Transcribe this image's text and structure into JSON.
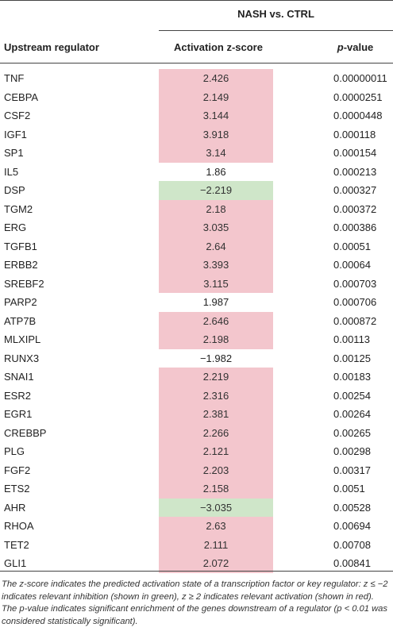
{
  "header": {
    "group_label": "NASH vs. CTRL",
    "col_regulator": "Upstream regulator",
    "col_zscore": "Activation z-score",
    "col_pvalue_prefix": "p",
    "col_pvalue_suffix": "-value"
  },
  "colors": {
    "activation": "#f3c6cd",
    "inhibition": "#cfe6c9"
  },
  "rows": [
    {
      "name": "TNF",
      "z": "2.426",
      "p": "0.00000011",
      "state": "act"
    },
    {
      "name": "CEBPA",
      "z": "2.149",
      "p": "0.0000251",
      "state": "act"
    },
    {
      "name": "CSF2",
      "z": "3.144",
      "p": "0.0000448",
      "state": "act"
    },
    {
      "name": "IGF1",
      "z": "3.918",
      "p": "0.000118",
      "state": "act"
    },
    {
      "name": "SP1",
      "z": "3.14",
      "p": "0.000154",
      "state": "act"
    },
    {
      "name": "IL5",
      "z": "1.86",
      "p": "0.000213",
      "state": "neu"
    },
    {
      "name": "DSP",
      "z": "−2.219",
      "p": "0.000327",
      "state": "inh"
    },
    {
      "name": "TGM2",
      "z": "2.18",
      "p": "0.000372",
      "state": "act"
    },
    {
      "name": "ERG",
      "z": "3.035",
      "p": "0.000386",
      "state": "act"
    },
    {
      "name": "TGFB1",
      "z": "2.64",
      "p": "0.00051",
      "state": "act"
    },
    {
      "name": "ERBB2",
      "z": "3.393",
      "p": "0.00064",
      "state": "act"
    },
    {
      "name": "SREBF2",
      "z": "3.115",
      "p": "0.000703",
      "state": "act"
    },
    {
      "name": "PARP2",
      "z": "1.987",
      "p": "0.000706",
      "state": "neu"
    },
    {
      "name": "ATP7B",
      "z": "2.646",
      "p": "0.000872",
      "state": "act"
    },
    {
      "name": "MLXIPL",
      "z": "2.198",
      "p": "0.00113",
      "state": "act"
    },
    {
      "name": "RUNX3",
      "z": "−1.982",
      "p": "0.00125",
      "state": "neu"
    },
    {
      "name": "SNAI1",
      "z": "2.219",
      "p": "0.00183",
      "state": "act"
    },
    {
      "name": "ESR2",
      "z": "2.316",
      "p": "0.00254",
      "state": "act"
    },
    {
      "name": "EGR1",
      "z": "2.381",
      "p": "0.00264",
      "state": "act"
    },
    {
      "name": "CREBBP",
      "z": "2.266",
      "p": "0.00265",
      "state": "act"
    },
    {
      "name": "PLG",
      "z": "2.121",
      "p": "0.00298",
      "state": "act"
    },
    {
      "name": "FGF2",
      "z": "2.203",
      "p": "0.00317",
      "state": "act"
    },
    {
      "name": "ETS2",
      "z": "2.158",
      "p": "0.0051",
      "state": "act"
    },
    {
      "name": "AHR",
      "z": "−3.035",
      "p": "0.00528",
      "state": "inh"
    },
    {
      "name": "RHOA",
      "z": "2.63",
      "p": "0.00694",
      "state": "act"
    },
    {
      "name": "TET2",
      "z": "2.111",
      "p": "0.00708",
      "state": "act"
    },
    {
      "name": "GLI1",
      "z": "2.072",
      "p": "0.00841",
      "state": "act"
    }
  ],
  "footnote": "The z-score indicates the predicted activation state of a transcription factor or key regulator: z ≤ −2 indicates relevant inhibition (shown in green), z ≥ 2 indicates relevant activation (shown in red). The p-value indicates significant enrichment of the genes downstream of a regulator (p < 0.01 was considered statistically significant)."
}
